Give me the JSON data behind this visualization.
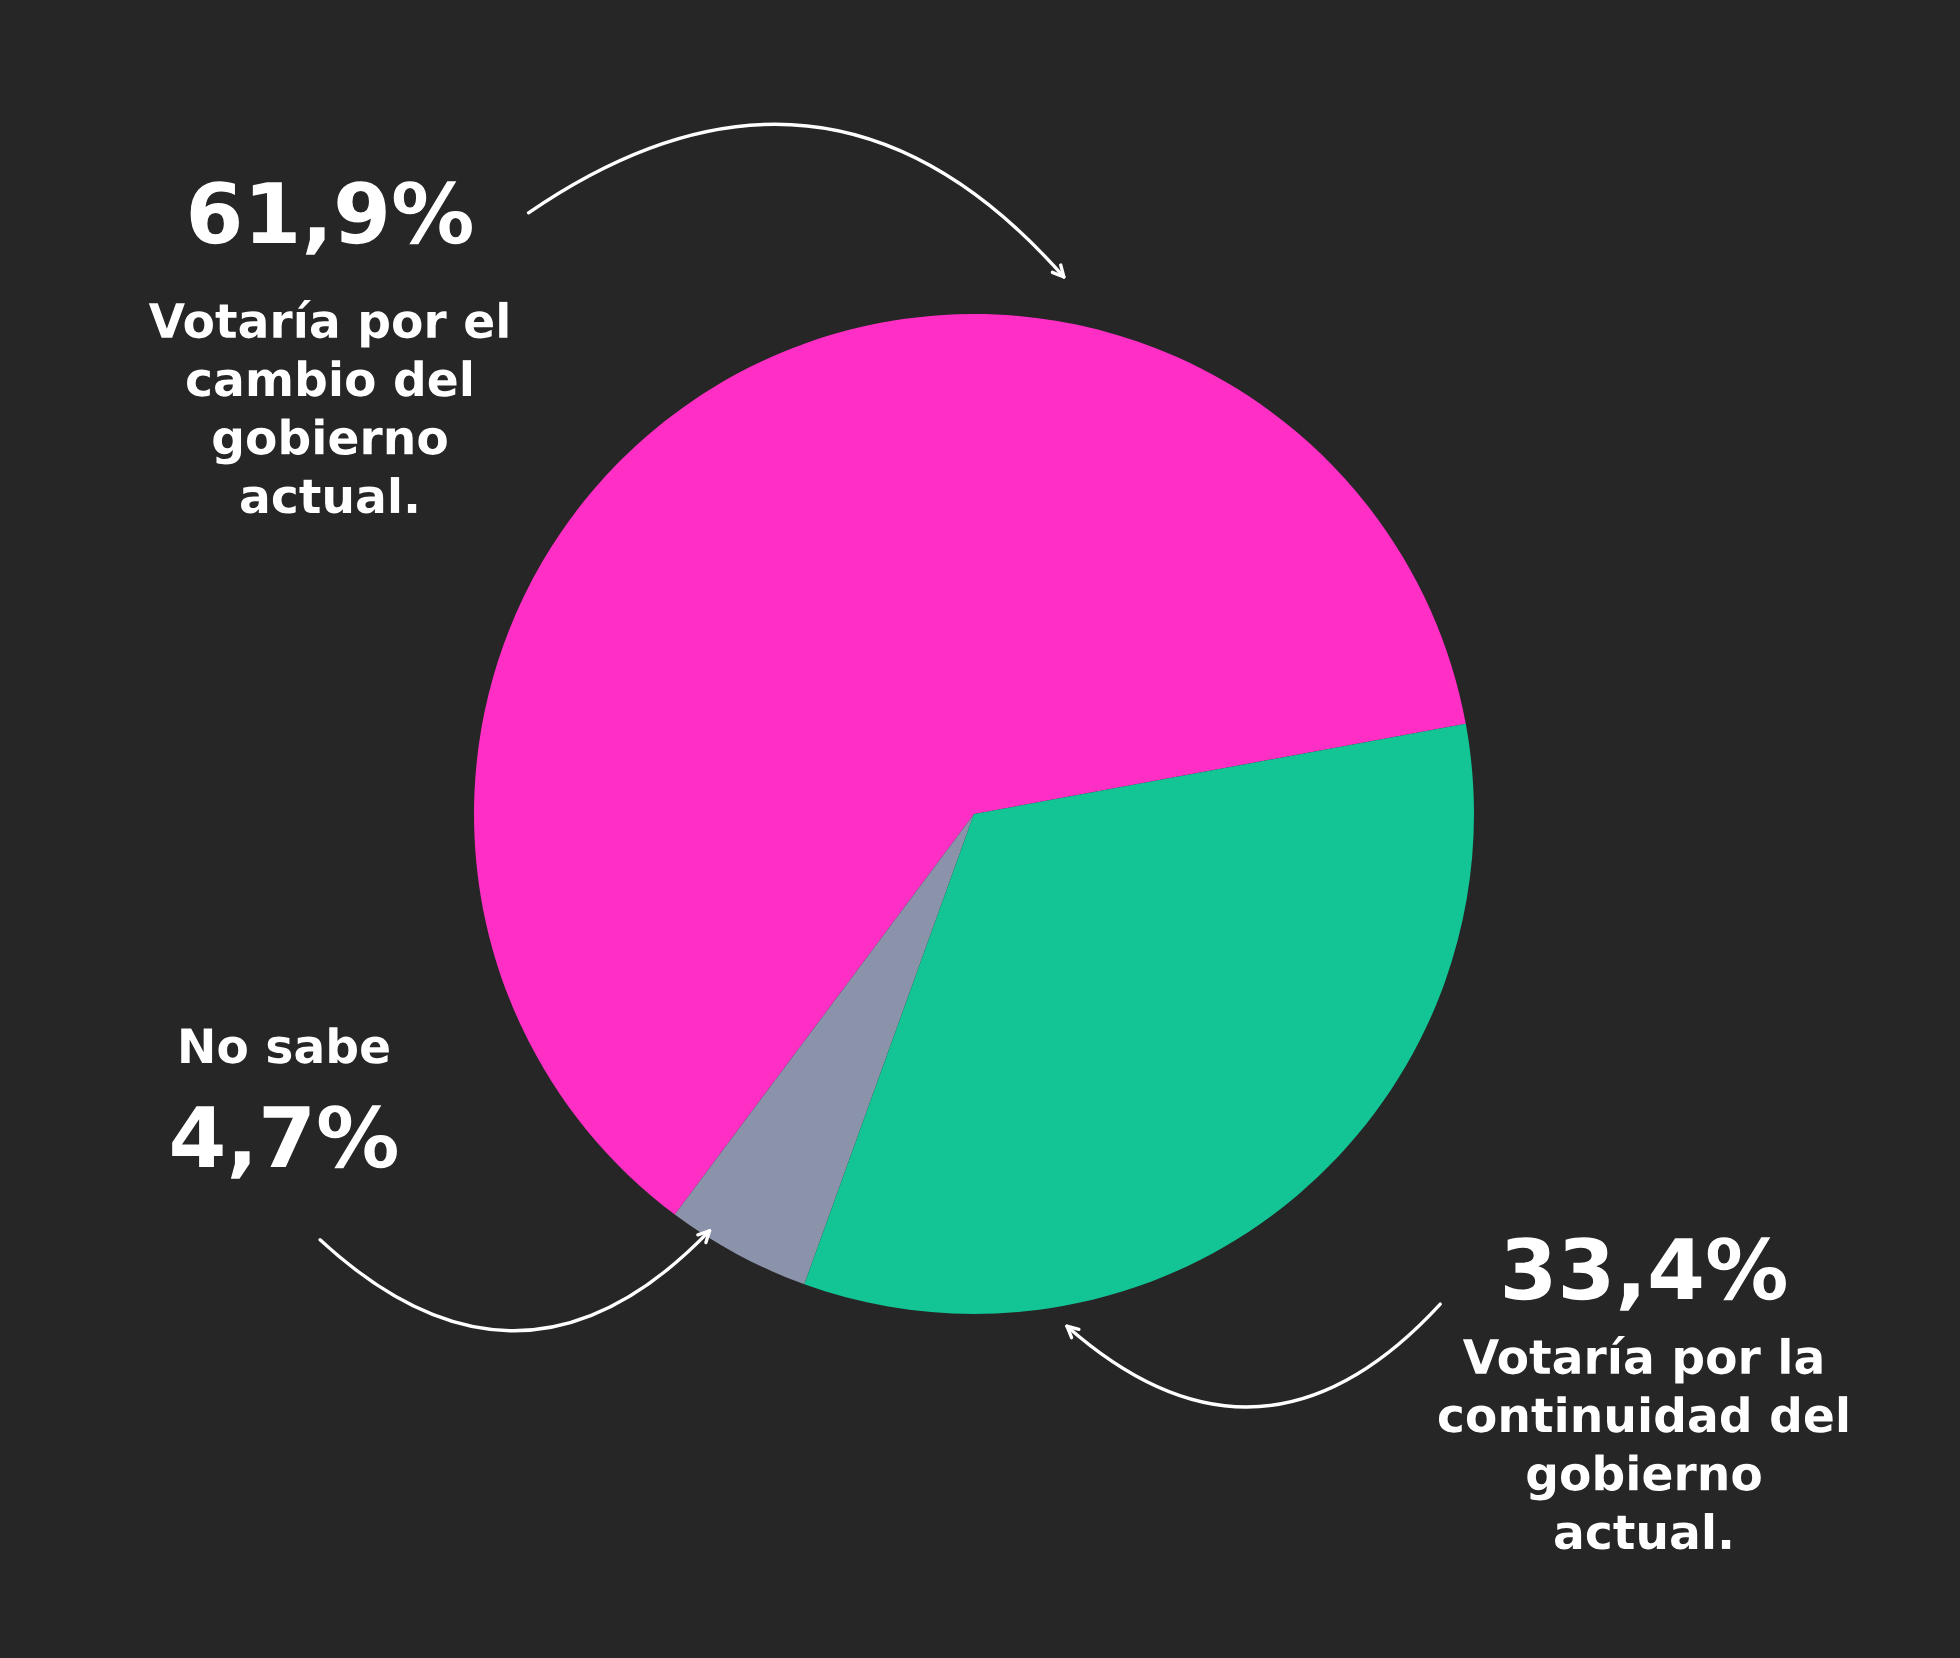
{
  "chart_data": {
    "type": "pie",
    "categories": [
      "Votaría por el\ncambio del\ngobierno\nactual.",
      "No sabe",
      "Votaría por la\ncontinuidad del\ngobierno\nactual."
    ],
    "values": [
      61.9,
      4.7,
      33.4
    ],
    "colors": [
      "#ff2ec4",
      "#8a93aa",
      "#13c495"
    ],
    "value_labels": [
      "61,9%",
      "4,7%",
      "33,4%"
    ]
  }
}
